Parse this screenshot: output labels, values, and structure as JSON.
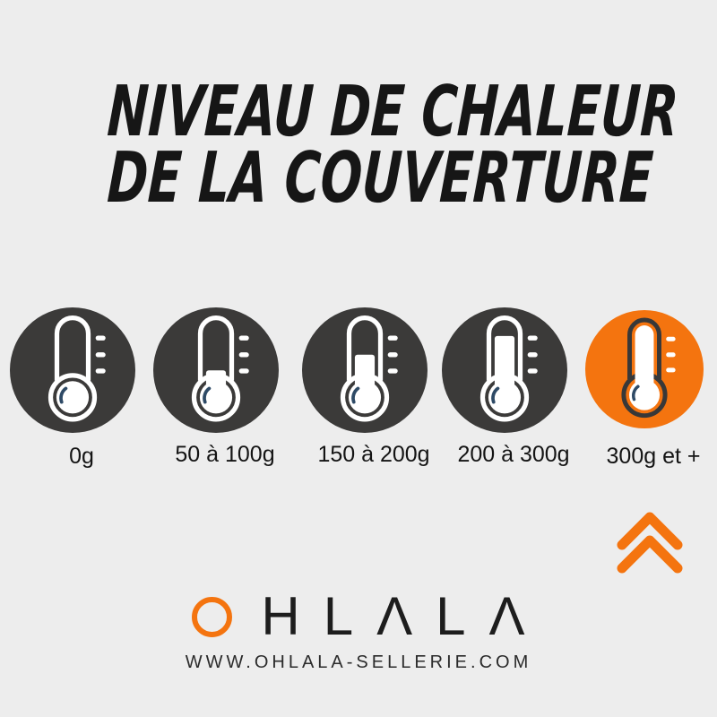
{
  "title": {
    "line1": "NIVEAU DE CHALEUR",
    "line2": "DE LA COUVERTURE"
  },
  "levels": [
    {
      "label": "0g",
      "fill_percent": 0,
      "highlighted": false
    },
    {
      "label": "50 à 100g",
      "fill_percent": 8,
      "highlighted": false
    },
    {
      "label": "150 à 200g",
      "fill_percent": 40,
      "highlighted": false
    },
    {
      "label": "200 à 300g",
      "fill_percent": 78,
      "highlighted": false
    },
    {
      "label": "300g et +",
      "fill_percent": 100,
      "highlighted": true
    }
  ],
  "icons": {
    "thermometer": "thermometer-icon",
    "chevron": "double-chevron-up-icon"
  },
  "colors": {
    "background": "#ededed",
    "circle_dark": "#3b3a39",
    "accent_orange": "#f4740f",
    "thermometer_outline_light": "#ffffff",
    "thermometer_outline_dark": "#383838",
    "thermometer_fill": "#ffffff",
    "bulb_arc": "#2e4a66",
    "text": "#161616"
  },
  "footer": {
    "brand": "OHLALA",
    "brand_letters": "HLΛLΛ",
    "website": "WWW.OHLALA-SELLERIE.COM"
  }
}
